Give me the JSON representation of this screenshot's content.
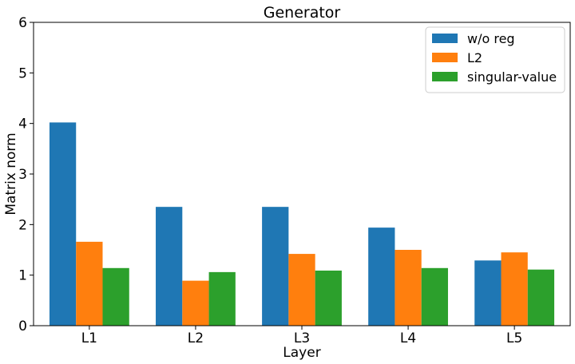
{
  "chart_data": {
    "type": "bar",
    "title": "Generator",
    "xlabel": "Layer",
    "ylabel": "Matrix norm",
    "categories": [
      "L1",
      "L2",
      "L3",
      "L4",
      "L5"
    ],
    "ylim": [
      0,
      6
    ],
    "yticks": [
      0,
      1,
      2,
      3,
      4,
      5,
      6
    ],
    "grid": false,
    "legend_position": "top-right",
    "series": [
      {
        "name": "w/o reg",
        "color": "#1f77b4",
        "values": [
          4.02,
          2.35,
          2.35,
          1.94,
          1.29
        ]
      },
      {
        "name": "L2",
        "color": "#ff7f0e",
        "values": [
          1.66,
          0.89,
          1.42,
          1.5,
          1.45
        ]
      },
      {
        "name": "singular-value",
        "color": "#2ca02c",
        "values": [
          1.14,
          1.06,
          1.09,
          1.14,
          1.11
        ]
      }
    ]
  }
}
